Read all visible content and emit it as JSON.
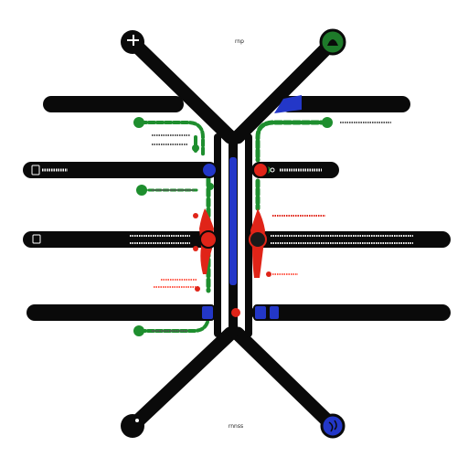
{
  "labels": {
    "top": "rnp",
    "bottom": "rnnss"
  },
  "colors": {
    "frame": "#0a0a0a",
    "green": "#1e8e2e",
    "red": "#e02418",
    "blue": "#2337c8",
    "red_text": "#ff5a4a"
  },
  "icons": {
    "top_left": "cross-icon",
    "top_right": "leaf-icon",
    "bottom_left": "node-icon",
    "bottom_right": "globe-icon"
  }
}
